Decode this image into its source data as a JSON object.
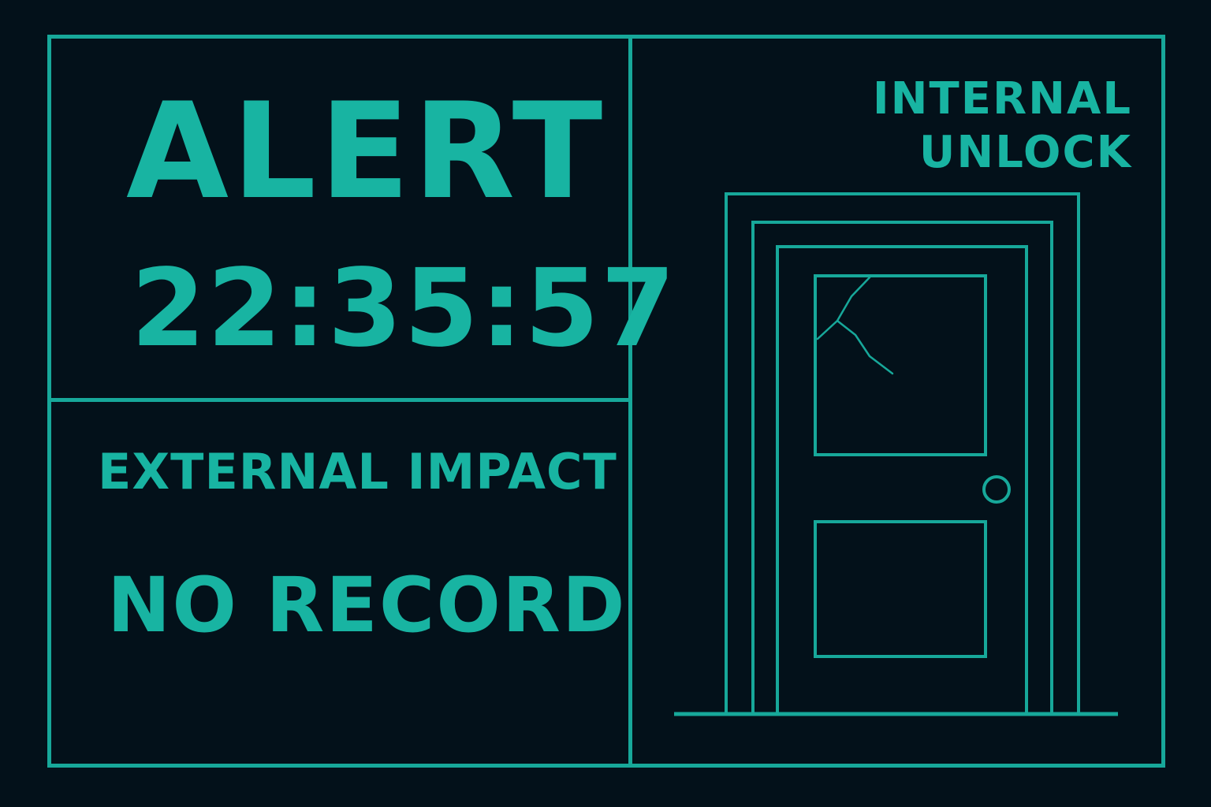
{
  "colors": {
    "background": "#03111a",
    "accent": "#17a89a",
    "text": "#18b4a2"
  },
  "alert_panel": {
    "title": "ALERT",
    "time": "22:35:57"
  },
  "status_panel": {
    "impact_label": "EXTERNAL IMPACT",
    "record_status": "NO RECORD"
  },
  "door_panel": {
    "unlock_label": "INTERNAL\nUNLOCK",
    "icon": "door-cracked-window-icon"
  }
}
